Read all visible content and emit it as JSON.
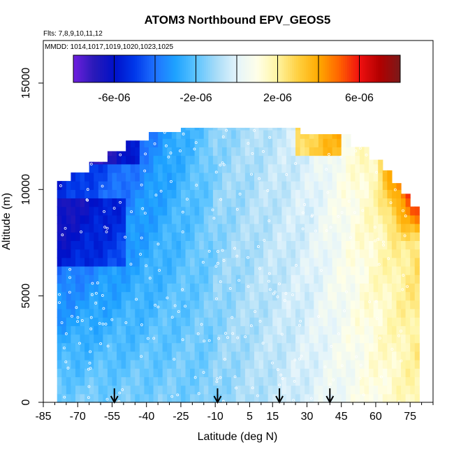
{
  "chart_data": {
    "type": "heatmap",
    "title": "ATOM3 Northbound EPV_GEOS5",
    "subtitle_flights": "Flts: 7,8,9,10,11,12",
    "subtitle_dates": "MMDD: 1014,1017,1019,1020,1023,1025",
    "xlabel": "Latitude (deg N)",
    "ylabel": "Altitude (m)",
    "xlim": [
      -85,
      85
    ],
    "ylim": [
      0,
      17000
    ],
    "x_ticks": [
      "-85",
      "-70",
      "-55",
      "-40",
      "-25",
      "-10",
      "5",
      "15",
      "30",
      "45",
      "60",
      "75"
    ],
    "x_tick_values": [
      -85,
      -70,
      -55,
      -40,
      -25,
      -10,
      5,
      15,
      30,
      45,
      60,
      75
    ],
    "x_minor_ticks": [
      -80,
      -75,
      -65,
      -60,
      -50,
      -45,
      -35,
      -30,
      -20,
      -15,
      -5,
      0,
      10,
      20,
      25,
      35,
      40,
      50,
      55,
      65,
      70,
      80,
      85
    ],
    "y_ticks": [
      "0",
      "5000",
      "10000",
      "15000"
    ],
    "y_tick_values": [
      0,
      5000,
      10000,
      15000
    ],
    "colorbar": {
      "range": [
        -8e-06,
        8e-06
      ],
      "labels": [
        "-6e-06",
        "-2e-06",
        "2e-06",
        "6e-06"
      ],
      "label_values": [
        -6e-06,
        -2e-06,
        2e-06,
        6e-06
      ],
      "colors": [
        "#6f1fdf",
        "#2a1ab8",
        "#0010c8",
        "#0038ea",
        "#1f72ff",
        "#1ea2ff",
        "#5cc4ff",
        "#a8dcf8",
        "#e4f4fb",
        "#ffffe8",
        "#fff4a0",
        "#ffd040",
        "#ffaa00",
        "#ff6400",
        "#f01010",
        "#b20000",
        "#7a1a1a"
      ]
    },
    "arrow_latitudes": [
      -54,
      -9,
      18,
      40
    ],
    "grid": false,
    "legend": "colorbar at top"
  }
}
